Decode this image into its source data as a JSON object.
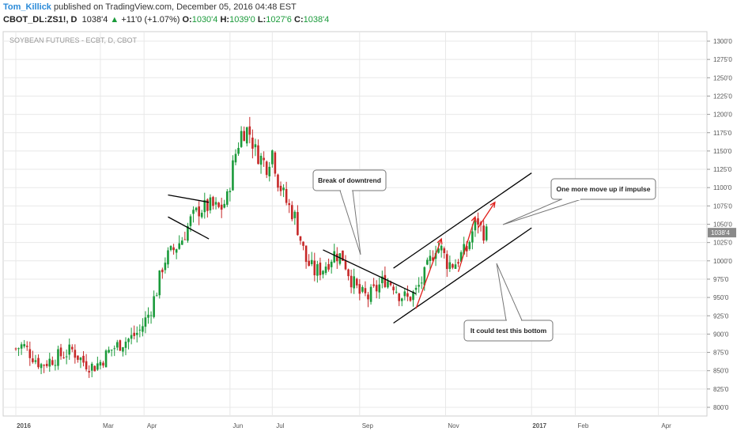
{
  "header": {
    "author": "Tom_Killick",
    "published": "published on TradingView.com, December 05, 2016 04:48 EST",
    "symbol": "CBOT_DL:ZS1!, D",
    "price": "1038'4",
    "change_arrow": "▲",
    "change": "+11'0 (+1.07%)",
    "o_label": "O:",
    "o_value": "1030'4",
    "h_label": "H:",
    "h_value": "1039'0",
    "l_label": "L:",
    "l_value": "1027'6",
    "c_label": "C:",
    "c_value": "1038'4"
  },
  "colors": {
    "up": "#1a9a3a",
    "down": "#c62828",
    "line": "#000000",
    "arrow": "#e0201c",
    "grid": "#e8e8e8"
  },
  "chart_data": {
    "type": "candlestick",
    "title": "SOYBEAN FUTURES - ECBT, D, CBOT",
    "xlabel": "",
    "ylabel": "",
    "ylim": [
      790,
      1310
    ],
    "yticks": [
      "1300'0",
      "1275'0",
      "1250'0",
      "1225'0",
      "1200'0",
      "1175'0",
      "1150'0",
      "1125'0",
      "1100'0",
      "1075'0",
      "1050'0",
      "1025'0",
      "1000'0",
      "975'0",
      "950'0",
      "925'0",
      "900'0",
      "875'0",
      "850'0",
      "825'0",
      "800'0"
    ],
    "ytick_values": [
      1300,
      1275,
      1250,
      1225,
      1200,
      1175,
      1150,
      1125,
      1100,
      1075,
      1050,
      1025,
      1000,
      975,
      950,
      925,
      900,
      875,
      850,
      825,
      800
    ],
    "xticks": [
      "2016",
      "Mar",
      "Apr",
      "Jun",
      "Jul",
      "Sep",
      "Nov",
      "2017",
      "Feb",
      "Apr"
    ],
    "xtick_days": [
      0,
      60,
      91,
      152,
      182,
      244,
      305,
      366,
      397,
      456
    ],
    "last_price_label": "1038'4",
    "last_price": 1038.5,
    "anchors": [
      [
        0,
        880
      ],
      [
        5,
        885
      ],
      [
        12,
        870
      ],
      [
        18,
        858
      ],
      [
        25,
        865
      ],
      [
        33,
        872
      ],
      [
        40,
        878
      ],
      [
        48,
        862
      ],
      [
        55,
        855
      ],
      [
        60,
        862
      ],
      [
        67,
        878
      ],
      [
        75,
        888
      ],
      [
        82,
        895
      ],
      [
        88,
        905
      ],
      [
        95,
        930
      ],
      [
        100,
        960
      ],
      [
        105,
        1000
      ],
      [
        112,
        1015
      ],
      [
        118,
        1030
      ],
      [
        124,
        1055
      ],
      [
        130,
        1070
      ],
      [
        138,
        1075
      ],
      [
        145,
        1070
      ],
      [
        150,
        1085
      ],
      [
        155,
        1140
      ],
      [
        160,
        1175
      ],
      [
        165,
        1180
      ],
      [
        170,
        1150
      ],
      [
        178,
        1130
      ],
      [
        182,
        1150
      ],
      [
        186,
        1110
      ],
      [
        192,
        1080
      ],
      [
        198,
        1060
      ],
      [
        202,
        1030
      ],
      [
        206,
        1000
      ],
      [
        212,
        985
      ],
      [
        218,
        990
      ],
      [
        226,
        1010
      ],
      [
        232,
        1005
      ],
      [
        238,
        975
      ],
      [
        244,
        955
      ],
      [
        250,
        950
      ],
      [
        256,
        962
      ],
      [
        262,
        975
      ],
      [
        268,
        968
      ],
      [
        272,
        955
      ],
      [
        278,
        948
      ],
      [
        284,
        958
      ],
      [
        290,
        980
      ],
      [
        294,
        1000
      ],
      [
        298,
        1020
      ],
      [
        302,
        1015
      ],
      [
        306,
        998
      ],
      [
        311,
        995
      ],
      [
        316,
        1008
      ],
      [
        320,
        1015
      ],
      [
        324,
        1040
      ],
      [
        328,
        1055
      ],
      [
        331,
        1040
      ],
      [
        334,
        1038
      ]
    ],
    "candle_step_days": 2,
    "trend_lines": [
      {
        "from": [
          108,
          1090
        ],
        "to": [
          137,
          1080
        ]
      },
      {
        "from": [
          108,
          1060
        ],
        "to": [
          137,
          1030
        ]
      },
      {
        "from": [
          218,
          1015
        ],
        "to": [
          284,
          955
        ]
      },
      {
        "from": [
          268,
          990
        ],
        "to": [
          366,
          1120
        ]
      },
      {
        "from": [
          268,
          915
        ],
        "to": [
          366,
          1045
        ]
      }
    ],
    "arrows": [
      {
        "from": [
          284,
          935
        ],
        "to": [
          302,
          1030
        ]
      },
      {
        "from": [
          314,
          985
        ],
        "to": [
          326,
          1060
        ]
      },
      {
        "from": [
          328,
          1045
        ],
        "to": [
          340,
          1080
        ]
      }
    ],
    "annotations": [
      {
        "text": "Break of downtrend",
        "anchor": [
          232,
          1015
        ]
      },
      {
        "text": "One more move up if impulse",
        "anchor": [
          338,
          1045
        ]
      },
      {
        "text": "It could test this bottom",
        "anchor": [
          336,
          1000
        ]
      }
    ]
  }
}
